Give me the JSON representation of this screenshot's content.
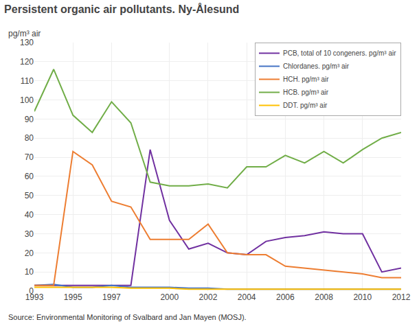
{
  "chart_data": {
    "type": "line",
    "title": "Persistent organic air pollutants. Ny-Ålesund",
    "ylabel": "pg/m³ air",
    "annotations": [
      "Source: Environmental Monitoring of Svalbard and Jan Mayen (MOSJ)."
    ],
    "x": [
      1993,
      1994,
      1995,
      1996,
      1997,
      1998,
      1999,
      2000,
      2001,
      2002,
      2003,
      2004,
      2005,
      2006,
      2007,
      2008,
      2009,
      2010,
      2011,
      2012
    ],
    "series": [
      {
        "name": "PCB, total of 10 congeners. pg/m³ air",
        "color": "#7030a0",
        "values": [
          3,
          3,
          3,
          3,
          3,
          3,
          74,
          37,
          22,
          25,
          20,
          19,
          26,
          28,
          29,
          31,
          30,
          30,
          10,
          12
        ]
      },
      {
        "name": "Chlordanes. pg/m³ air",
        "color": "#4472c4",
        "values": [
          3,
          3.5,
          2,
          2,
          3,
          2,
          2,
          2,
          1.5,
          1.5,
          1,
          1,
          1,
          1,
          1,
          1,
          1,
          1,
          1,
          1
        ]
      },
      {
        "name": "HCH. pg/m³ air",
        "color": "#ed7d31",
        "values": [
          3,
          3,
          73,
          66,
          47,
          44,
          27,
          27,
          27,
          35,
          20,
          19,
          19,
          13,
          12,
          11,
          10,
          9,
          7,
          7
        ]
      },
      {
        "name": "HCB. pg/m³ air",
        "color": "#70ad47",
        "values": [
          94,
          116,
          92,
          83,
          99,
          88,
          57,
          55,
          55,
          56,
          54,
          65,
          65,
          71,
          67,
          73,
          67,
          74,
          80,
          83
        ]
      },
      {
        "name": "DDT. pg/m³ air",
        "color": "#ffc000",
        "values": [
          2,
          2,
          2,
          2,
          2,
          1.5,
          1.5,
          1.5,
          1,
          1,
          1,
          1,
          1,
          1,
          1,
          1,
          1,
          1,
          1,
          1
        ]
      }
    ],
    "xlim": [
      1993,
      2012
    ],
    "xticks": [
      1993,
      1995,
      1997,
      2000,
      2002,
      2004,
      2006,
      2008,
      2010,
      2012
    ],
    "ylim": [
      0,
      130
    ],
    "yticks": [
      0,
      10,
      20,
      30,
      40,
      50,
      60,
      70,
      80,
      90,
      100,
      110,
      120,
      130
    ],
    "grid": true,
    "legend": "upper right"
  }
}
